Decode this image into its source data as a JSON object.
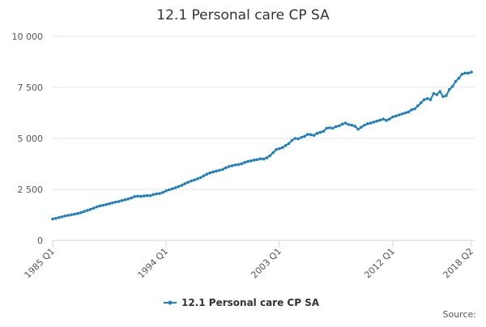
{
  "chart_data": {
    "type": "line",
    "title": "12.1 Personal care CP SA",
    "source": "Source:",
    "categories": [
      "1985 Q1",
      null,
      null,
      null,
      null,
      null,
      null,
      null,
      null,
      null,
      null,
      null,
      null,
      null,
      null,
      null,
      null,
      null,
      null,
      null,
      null,
      null,
      null,
      null,
      null,
      null,
      null,
      null,
      null,
      null,
      null,
      null,
      null,
      null,
      null,
      null,
      "1994 Q1",
      null,
      null,
      null,
      null,
      null,
      null,
      null,
      null,
      null,
      null,
      null,
      null,
      null,
      null,
      null,
      null,
      null,
      null,
      null,
      null,
      null,
      null,
      null,
      null,
      null,
      null,
      null,
      null,
      null,
      null,
      null,
      null,
      null,
      null,
      null,
      "2003 Q1",
      null,
      null,
      null,
      null,
      null,
      null,
      null,
      null,
      null,
      null,
      null,
      null,
      null,
      null,
      null,
      null,
      null,
      null,
      null,
      null,
      null,
      null,
      null,
      null,
      null,
      null,
      null,
      null,
      null,
      null,
      null,
      null,
      null,
      null,
      null,
      "2012 Q1",
      null,
      null,
      null,
      null,
      null,
      null,
      null,
      null,
      null,
      null,
      null,
      null,
      null,
      null,
      null,
      null,
      null,
      null,
      null,
      null,
      null,
      null,
      null,
      null,
      "2018 Q2"
    ],
    "series": [
      {
        "name": "12.1 Personal care CP SA",
        "color": "#1f7fc0",
        "values": [
          1050,
          1080,
          1120,
          1160,
          1200,
          1230,
          1260,
          1290,
          1320,
          1360,
          1420,
          1470,
          1520,
          1580,
          1640,
          1690,
          1720,
          1760,
          1800,
          1840,
          1880,
          1910,
          1950,
          1990,
          2030,
          2080,
          2150,
          2170,
          2160,
          2180,
          2200,
          2190,
          2250,
          2280,
          2300,
          2350,
          2430,
          2480,
          2530,
          2580,
          2640,
          2700,
          2780,
          2850,
          2910,
          2960,
          3020,
          3080,
          3170,
          3250,
          3310,
          3360,
          3400,
          3440,
          3480,
          3560,
          3620,
          3660,
          3700,
          3720,
          3760,
          3820,
          3870,
          3900,
          3940,
          3960,
          4000,
          3990,
          4050,
          4150,
          4300,
          4450,
          4500,
          4550,
          4650,
          4750,
          4900,
          5000,
          4980,
          5050,
          5100,
          5200,
          5180,
          5150,
          5250,
          5300,
          5350,
          5500,
          5520,
          5500,
          5580,
          5620,
          5700,
          5750,
          5680,
          5650,
          5600,
          5450,
          5550,
          5650,
          5720,
          5750,
          5800,
          5850,
          5900,
          5950,
          5880,
          5950,
          6050,
          6100,
          6150,
          6200,
          6250,
          6300,
          6400,
          6450,
          6600,
          6750,
          6900,
          6950,
          6900,
          7200,
          7150,
          7300,
          7050,
          7100,
          7400,
          7550,
          7800,
          7950,
          8150,
          8200,
          8200,
          8250
        ]
      }
    ],
    "ylim": [
      0,
      10000
    ],
    "yticks": [
      0,
      {
        "value": 2500,
        "label": "2 500"
      },
      {
        "value": 5000,
        "label": "5 000"
      },
      {
        "value": 7500,
        "label": "7 500"
      },
      {
        "value": 10000,
        "label": "10 000"
      }
    ],
    "grid": true
  }
}
